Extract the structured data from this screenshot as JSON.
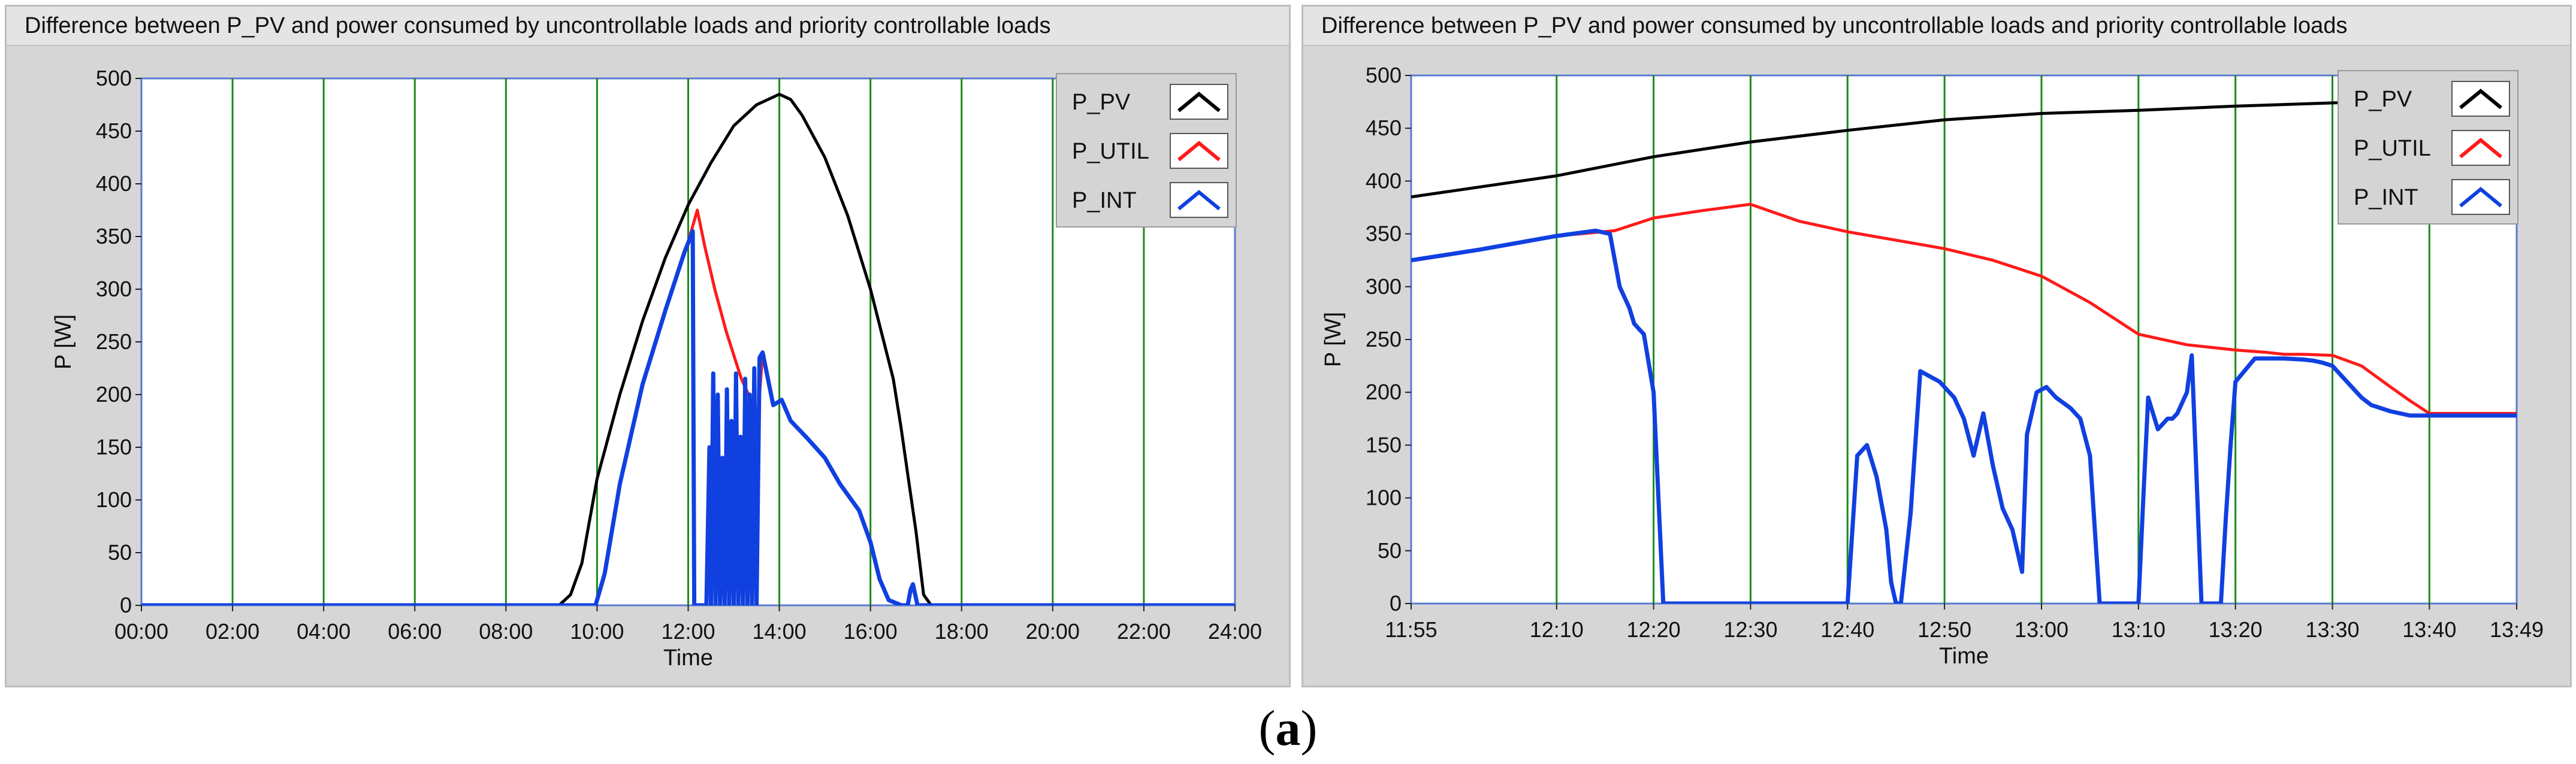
{
  "caption": {
    "open": "(",
    "letter": "a",
    "close": ")"
  },
  "colors": {
    "pv": "#000000",
    "util": "#ff1a1a",
    "int": "#1040e0",
    "grid": "#1a8a1a",
    "frame_border": "#5a7ad0"
  },
  "chart_data": [
    {
      "type": "line",
      "title": "Difference between P_PV and power consumed by uncontrollable loads and priority controllable loads",
      "xlabel": "Time",
      "ylabel": "P [W]",
      "x_unit": "minutes since 00:00",
      "xlim": [
        0,
        1440
      ],
      "ylim": [
        0,
        500
      ],
      "x_ticks": [
        {
          "v": 0,
          "label": "00:00"
        },
        {
          "v": 120,
          "label": "02:00"
        },
        {
          "v": 240,
          "label": "04:00"
        },
        {
          "v": 360,
          "label": "06:00"
        },
        {
          "v": 480,
          "label": "08:00"
        },
        {
          "v": 600,
          "label": "10:00"
        },
        {
          "v": 720,
          "label": "12:00"
        },
        {
          "v": 840,
          "label": "14:00"
        },
        {
          "v": 960,
          "label": "16:00"
        },
        {
          "v": 1080,
          "label": "18:00"
        },
        {
          "v": 1200,
          "label": "20:00"
        },
        {
          "v": 1320,
          "label": "22:00"
        },
        {
          "v": 1440,
          "label": "24:00"
        }
      ],
      "y_ticks": [
        0,
        50,
        100,
        150,
        200,
        250,
        300,
        350,
        400,
        450,
        500
      ],
      "legend": [
        "P_PV",
        "P_UTIL",
        "P_INT"
      ],
      "series": [
        {
          "name": "P_PV",
          "color_key": "pv",
          "x": [
            0,
            550,
            565,
            580,
            600,
            630,
            660,
            690,
            720,
            750,
            780,
            810,
            840,
            855,
            870,
            900,
            930,
            960,
            990,
            1000,
            1010,
            1020,
            1030,
            1040,
            1440
          ],
          "y": [
            0,
            0,
            10,
            40,
            120,
            200,
            270,
            330,
            380,
            420,
            455,
            475,
            485,
            480,
            465,
            425,
            370,
            300,
            215,
            170,
            120,
            70,
            10,
            0,
            0
          ]
        },
        {
          "name": "P_UTIL",
          "color_key": "util",
          "x": [
            0,
            598,
            610,
            630,
            660,
            690,
            718,
            732,
            742,
            755,
            770,
            790,
            812,
            818,
            832,
            843,
            855,
            875,
            900,
            920,
            945,
            960,
            972,
            984,
            1001,
            1009,
            1013,
            1016,
            1022,
            1035,
            1440
          ],
          "y": [
            0,
            0,
            30,
            115,
            210,
            280,
            340,
            375,
            340,
            300,
            260,
            215,
            180,
            240,
            190,
            195,
            175,
            160,
            140,
            115,
            90,
            60,
            25,
            5,
            0,
            0,
            15,
            20,
            0,
            0,
            0
          ]
        },
        {
          "name": "P_INT",
          "color_key": "int",
          "x": [
            0,
            598,
            610,
            630,
            660,
            690,
            715,
            726,
            728,
            744,
            748,
            750,
            753,
            756,
            759,
            762,
            765,
            768,
            771,
            774,
            777,
            780,
            783,
            786,
            789,
            792,
            795,
            798,
            801,
            804,
            807,
            810,
            814,
            818,
            832,
            843,
            855,
            875,
            900,
            920,
            945,
            960,
            972,
            984,
            1001,
            1009,
            1013,
            1016,
            1022,
            1035,
            1440
          ],
          "y": [
            0,
            0,
            30,
            115,
            210,
            280,
            335,
            355,
            0,
            0,
            150,
            0,
            220,
            0,
            200,
            0,
            140,
            0,
            205,
            0,
            175,
            0,
            220,
            0,
            160,
            0,
            215,
            0,
            200,
            0,
            225,
            0,
            235,
            240,
            190,
            195,
            175,
            160,
            140,
            115,
            90,
            60,
            25,
            5,
            0,
            0,
            15,
            20,
            0,
            0,
            0
          ]
        }
      ]
    },
    {
      "type": "line",
      "title": "Difference between P_PV and power consumed by uncontrollable loads and priority controllable loads",
      "xlabel": "Time",
      "ylabel": "P [W]",
      "x_unit": "minutes since 00:00",
      "xlim": [
        715,
        829
      ],
      "ylim": [
        0,
        500
      ],
      "x_ticks": [
        {
          "v": 715,
          "label": "11:55"
        },
        {
          "v": 730,
          "label": "12:10"
        },
        {
          "v": 740,
          "label": "12:20"
        },
        {
          "v": 750,
          "label": "12:30"
        },
        {
          "v": 760,
          "label": "12:40"
        },
        {
          "v": 770,
          "label": "12:50"
        },
        {
          "v": 780,
          "label": "13:00"
        },
        {
          "v": 790,
          "label": "13:10"
        },
        {
          "v": 800,
          "label": "13:20"
        },
        {
          "v": 810,
          "label": "13:30"
        },
        {
          "v": 820,
          "label": "13:40"
        },
        {
          "v": 829,
          "label": "13:49"
        }
      ],
      "y_ticks": [
        0,
        50,
        100,
        150,
        200,
        250,
        300,
        350,
        400,
        450,
        500
      ],
      "legend": [
        "P_PV",
        "P_UTIL",
        "P_INT"
      ],
      "series": [
        {
          "name": "P_PV",
          "color_key": "pv",
          "x": [
            715,
            730,
            740,
            750,
            760,
            770,
            780,
            790,
            800,
            810,
            820,
            829
          ],
          "y": [
            385,
            405,
            423,
            437,
            448,
            458,
            464,
            467,
            471,
            474,
            477,
            480
          ]
        },
        {
          "name": "P_UTIL",
          "color_key": "util",
          "x": [
            715,
            722,
            730,
            736,
            740,
            745,
            750,
            755,
            760,
            765,
            770,
            775,
            780,
            785,
            790,
            795,
            800,
            803,
            805,
            807,
            810,
            813,
            816,
            818,
            820,
            824,
            829
          ],
          "y": [
            325,
            335,
            348,
            353,
            365,
            372,
            378,
            362,
            352,
            344,
            336,
            325,
            310,
            285,
            255,
            245,
            240,
            238,
            236,
            236,
            235,
            225,
            205,
            192,
            180,
            180,
            180
          ]
        },
        {
          "name": "P_INT",
          "color_key": "int",
          "x": [
            715,
            722,
            730,
            734,
            735.5,
            736.5,
            737.5,
            738,
            739,
            740,
            741,
            760,
            761,
            762,
            763,
            764,
            764.5,
            765,
            765.5,
            766.5,
            767.5,
            769.5,
            771,
            772,
            773,
            774,
            775,
            776,
            777,
            778,
            778.5,
            779.5,
            780.5,
            781.5,
            783,
            784,
            785,
            786,
            787,
            790,
            790.5,
            791,
            791.5,
            792,
            792.5,
            793,
            793.5,
            794,
            795,
            795.5,
            796.5,
            797.5,
            798.5,
            799,
            799.5,
            800,
            802,
            804,
            805,
            807,
            808,
            809,
            810,
            811,
            812,
            813,
            814,
            816,
            818,
            820,
            829
          ],
          "y": [
            325,
            335,
            348,
            353,
            350,
            300,
            280,
            265,
            255,
            200,
            0,
            0,
            140,
            150,
            120,
            70,
            20,
            0,
            0,
            85,
            220,
            210,
            195,
            175,
            140,
            180,
            130,
            90,
            70,
            30,
            160,
            200,
            205,
            195,
            185,
            175,
            140,
            0,
            0,
            0,
            100,
            195,
            180,
            165,
            170,
            175,
            175,
            180,
            200,
            235,
            0,
            0,
            0,
            80,
            150,
            210,
            232,
            232,
            232,
            231,
            230,
            228,
            225,
            215,
            205,
            195,
            188,
            182,
            178,
            178,
            178
          ]
        }
      ]
    }
  ]
}
